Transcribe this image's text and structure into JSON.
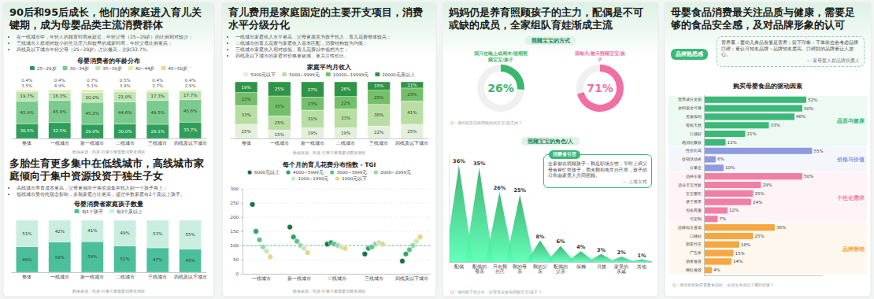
{
  "sections": [
    {
      "title": "90后和95后成长，他们的家庭进入育儿关键期，成为母婴品类主流消费群体",
      "bullets": [
        "在一线城市中，年轻人的婚育时间点延迟，年轻父母（25~29岁）的比例相对较少；",
        "三线城市人群相对较小的生活压力和较早的成家时间，年轻父母比例更高；",
        "四线及以下城市年轻父母（25~29岁）占比最高，达到33.7%。"
      ]
    },
    {
      "title": "多胎生育更多集中在低线城市，高线城市家庭倾向于集中资源投资于独生子女",
      "bullets": [
        "高线城市养育成本更高，父母更倾向于将资源集中投入到一个孩子身上；",
        "低线城市受传统观念影响，多胎家庭占比更高，超过半数家庭有2个及以上孩子。"
      ]
    },
    {
      "title": "育儿费用是家庭固定的主要开支项目，消费水平分级分化",
      "bullets": [
        "一线城市家庭收入水平更高，父母更愿意为孩子投入，育儿花费整体较高；",
        "二线城市的育儿花费与家庭收入基本匹配，消费结构较为均衡；",
        "三线城市家庭收入相对较低，育儿花费以中低档为主；",
        "四线及以下城市的家庭对价格更敏感，更关注性价比。"
      ]
    },
    {
      "title": "妈妈仍是养育照顾孩子的主力，配偶是不可或缺的成员，全家组队育娃渐成主流"
    },
    {
      "title": "母婴食品消费最关注品质与健康，需要足够的食品安全感，及对品牌形象的认可"
    }
  ],
  "quotes": [
    {
      "label": "消费者引言",
      "text": "全家都在照顾孩子：我是职场女性，平时上班父母会帮忙带孩子，周末我和先生自己带，孩子的日常由家里人共同照顾。",
      "author": "— 上海女性"
    },
    {
      "label": "品牌熟悉感",
      "text": "营养素：婴幼儿食品首要是营养；留下印象：下单前也会考虑品牌口碑；更认可知名品牌：品牌知名度高、口碑好的品牌更让人放心。",
      "author": "— 某母婴人群品牌负责人"
    }
  ],
  "chart_data": [
    {
      "type": "bar",
      "stacked": true,
      "title": "母婴消费者的年龄分布",
      "categories": [
        "整体",
        "一线城市",
        "新一线城市",
        "二线城市",
        "三线城市",
        "四线及以下城市"
      ],
      "series": [
        {
          "name": "25~29岁",
          "color": "#2f9e5b",
          "values": [
            30.5,
            32.5,
            29.0,
            30.0,
            29.1,
            33.7
          ],
          "value_labels": [
            "30.5%",
            "32.5%",
            "29.0%",
            "30.0%",
            "29.1%",
            "33.7%"
          ]
        },
        {
          "name": "30~34岁",
          "color": "#7ccb8e",
          "values": [
            45.9,
            45.9,
            45.2,
            44.6,
            49.5,
            45.6
          ],
          "value_labels": [
            "45.9%",
            "45.9%",
            "45.2%",
            "44.6%",
            "49.5%",
            "45.6%"
          ]
        },
        {
          "name": "35~39岁",
          "color": "#bfe5b5",
          "values": [
            19.7,
            16.3,
            20.0,
            21.0,
            17.3,
            17.7
          ],
          "value_labels": [
            "19.7%",
            "16.3%",
            "20.0%",
            "21.0%",
            "17.3%",
            "17.7%"
          ]
        },
        {
          "name": "40~44岁",
          "color": "#e2ecaa",
          "values": [
            3.5,
            4.9,
            5.1,
            3.9,
            3.7,
            2.6
          ],
          "value_labels": [
            "3.5%",
            "4.9%",
            "5.1%",
            "3.9%",
            "3.7%",
            "2.6%"
          ]
        },
        {
          "name": "45~50岁",
          "color": "#f4d68a",
          "values": [
            0.4,
            0.4,
            0.7,
            0.5,
            0.4,
            0.4
          ],
          "value_labels": [
            "0.4%",
            "0.4%",
            "0.7%",
            "0.5%",
            "0.4%",
            "0.4%"
          ]
        }
      ],
      "ylim": [
        0,
        100
      ],
      "tick_labels": "x",
      "data_labels": true,
      "legend": "top",
      "source": "数据来源：凯度-巨量引擎母婴消费者调研"
    },
    {
      "type": "bar",
      "stacked": true,
      "title": "母婴消费者家庭孩子数量",
      "categories": [
        "整体",
        "一线城市",
        "新一线城市",
        "二线城市",
        "三线城市",
        "四线及以下城市"
      ],
      "series": [
        {
          "name": "有1个孩子",
          "color": "#4bbf9c",
          "values": [
            49,
            58,
            59,
            51,
            47,
            45
          ],
          "value_labels": [
            "49%",
            "58%",
            "59%",
            "51%",
            "47%",
            "45%"
          ]
        },
        {
          "name": "有2个及以上",
          "color": "#c9eee0",
          "values": [
            51,
            42,
            41,
            49,
            53,
            55
          ],
          "value_labels": [
            "51%",
            "42%",
            "41%",
            "49%",
            "53%",
            "55%"
          ]
        }
      ],
      "ylim": [
        0,
        100
      ],
      "tick_labels": "x",
      "data_labels": true,
      "legend": "top",
      "source": "数据来源：凯度-巨量引擎母婴消费者调研"
    },
    {
      "type": "bar",
      "stacked": true,
      "title": "家庭平均月收入",
      "categories": [
        "整体",
        "一线城市",
        "新一线城市",
        "二线城市",
        "三线城市",
        "四线及以下城市"
      ],
      "series": [
        {
          "name": "5000元以下",
          "color": "#e4efdc",
          "values": [
            25,
            15,
            19,
            19,
            22,
            25
          ],
          "value_labels": [
            "25%",
            "15%",
            "19%",
            "19%",
            "22%",
            "25%"
          ]
        },
        {
          "name": "5000~9999元",
          "color": "#b9dea3",
          "values": [
            33,
            25,
            31,
            33,
            38,
            41
          ],
          "value_labels": [
            "33%",
            "25%",
            "31%",
            "33%",
            "38%",
            "41%"
          ]
        },
        {
          "name": "10000~19999元",
          "color": "#74c06a",
          "values": [
            23,
            35,
            23,
            22,
            25,
            23
          ],
          "value_labels": [
            "23%",
            "35%",
            "23%",
            "22%",
            "25%",
            "23%"
          ]
        },
        {
          "name": "20000元及以上",
          "color": "#2f9447",
          "values": [
            19,
            25,
            27,
            26,
            15,
            11
          ],
          "value_labels": [
            "19%",
            "25%",
            "27%",
            "26%",
            "15%",
            "11%"
          ]
        }
      ],
      "ylim": [
        0,
        100
      ],
      "tick_labels": "x",
      "data_labels": true,
      "legend": "top",
      "source": "数据来源：凯度-巨量引擎母婴消费者调研"
    },
    {
      "type": "scatter",
      "title": "每个月的育儿花费分布指数 - TGI",
      "categories": [
        "一线城市",
        "新一线城市",
        "二线城市",
        "三线城市",
        "四线及以下城市"
      ],
      "series": [
        {
          "name": "6000元以上",
          "color": "#1b6e4a",
          "values": [
            245,
            165,
            105,
            70,
            45
          ]
        },
        {
          "name": "4000~5999元",
          "color": "#2fa36b",
          "values": [
            150,
            130,
            110,
            90,
            70
          ]
        },
        {
          "name": "3000~3999元",
          "color": "#61c08a",
          "values": [
            120,
            115,
            105,
            95,
            85
          ]
        },
        {
          "name": "2000~2999元",
          "color": "#9ad4a9",
          "values": [
            95,
            100,
            100,
            105,
            100
          ]
        },
        {
          "name": "1000~1999元",
          "color": "#c7e7c0",
          "values": [
            80,
            90,
            95,
            110,
            115
          ]
        },
        {
          "name": "1000元以下",
          "color": "#e6d48a",
          "values": [
            60,
            75,
            90,
            105,
            130
          ]
        }
      ],
      "ylim": [
        0,
        300
      ],
      "yticks": [
        0,
        50,
        100,
        150,
        200,
        250,
        300
      ],
      "grid": true,
      "marker": "circle",
      "reference_line": 100,
      "legend": "top",
      "source": "数据来源：凯度-巨量引擎母婴消费者调研"
    },
    {
      "type": "donut",
      "title": "照顾宝宝的方式",
      "categories": [
        "我只在晚上或周末/假期照顾宝宝/孩子",
        "我每天/整天照顾宝宝/孩子"
      ],
      "values": [
        26,
        71
      ],
      "value_labels": [
        "26%",
        "71%"
      ],
      "colors": [
        "#39b86b",
        "#f06fa4"
      ],
      "ylim": [
        0,
        100
      ],
      "data_labels": true,
      "note": "Q：请问您是怎样照顾您的宝宝/孩子的？"
    },
    {
      "type": "spike",
      "title": "照顾宝宝的角色/人",
      "categories": [
        "配偶",
        "配偶的母亲",
        "只有我自己",
        "我的母亲",
        "我的父亲",
        "配偶的父亲",
        "保姆",
        "月嫂",
        "家里的亲戚",
        "其他"
      ],
      "values": [
        36,
        35,
        26,
        25,
        8,
        6,
        4,
        3,
        2,
        1
      ],
      "value_labels": [
        "36%",
        "35%",
        "26%",
        "25%",
        "8%",
        "6%",
        "4%",
        "3%",
        "2%",
        "1%"
      ],
      "color": "#2fae66",
      "ylim": [
        0,
        40
      ],
      "tick_labels": "x",
      "data_labels": true,
      "note": "Q：请问除了您之外，还有谁会参与照顾宝宝/孩子？"
    },
    {
      "type": "bar",
      "orientation": "horizontal",
      "title": "购买母婴食品的驱动因素",
      "series": [
        {
          "name": "品质与健康",
          "color": "#3cb878",
          "categories": [
            "营养成分全面",
            "原料安全可靠",
            "无添加剂",
            "有机天然",
            "口感好",
            "易消化吸收"
          ],
          "values": [
            52,
            50,
            46,
            33,
            21,
            11
          ],
          "value_labels": [
            "52%",
            "50%",
            "46%",
            "33%",
            "21%",
            "11%"
          ]
        },
        {
          "name": "价格与价值",
          "color": "#8e9be0",
          "categories": [
            "性价比高",
            "促销活动多",
            "分量足"
          ],
          "values": [
            55,
            6,
            10
          ],
          "value_labels": [
            "55%",
            "6%",
            "10%"
          ]
        },
        {
          "name": "个性化需求",
          "color": "#f07fa6",
          "categories": [
            "品种丰富",
            "适合宝宝月龄",
            "宝宝爱吃",
            "便于携带",
            "包装有趣",
            "可定制"
          ],
          "values": [
            50,
            29,
            25,
            24,
            12,
            7
          ],
          "value_labels": [
            "50%",
            "29%",
            "25%",
            "24%",
            "12%",
            "7%"
          ]
        },
        {
          "name": "品牌营销",
          "color": "#f5a742",
          "categories": [
            "品牌知名度高",
            "口碑好",
            "明星代言",
            "广告多",
            "朋友推荐",
            "网红推荐"
          ],
          "values": [
            36,
            25,
            18,
            15,
            14,
            4
          ],
          "value_labels": [
            "36%",
            "25%",
            "18%",
            "15%",
            "14%",
            "4%"
          ]
        }
      ],
      "xlim": [
        0,
        60
      ],
      "tick_labels": "y",
      "data_labels": true,
      "note": "Q：请问您在购买母婴食品时，会优先考虑以下哪些因素？"
    }
  ]
}
